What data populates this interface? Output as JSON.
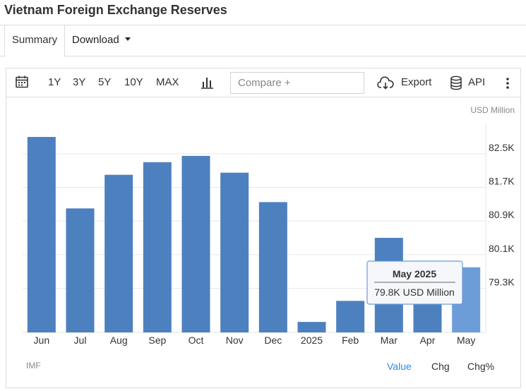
{
  "page": {
    "title": "Vietnam Foreign Exchange Reserves"
  },
  "tabs": {
    "summary": "Summary",
    "download": "Download"
  },
  "toolbar": {
    "ranges": [
      "1Y",
      "3Y",
      "5Y",
      "10Y",
      "MAX"
    ],
    "compare_placeholder": "Compare +",
    "export_label": "Export",
    "api_label": "API",
    "icons": {
      "calendar": "calendar-icon",
      "chart_type": "bar-chart-icon",
      "export": "cloud-download-icon",
      "api": "database-icon",
      "more": "more-vertical-icon"
    }
  },
  "chart_data": {
    "type": "bar",
    "unit_label": "USD Million",
    "categories": [
      "Jun",
      "Jul",
      "Aug",
      "Sep",
      "Oct",
      "Nov",
      "Dec",
      "2025",
      "Feb",
      "Mar",
      "Apr",
      "May"
    ],
    "values": [
      82.9,
      81.2,
      82.0,
      82.3,
      82.45,
      82.05,
      81.35,
      78.5,
      79.0,
      80.5,
      79.6,
      79.8
    ],
    "ylim": [
      78.25,
      83.22
    ],
    "yticks": [
      {
        "value": 79.3,
        "label": "79.3K"
      },
      {
        "value": 80.1,
        "label": "80.1K"
      },
      {
        "value": 80.9,
        "label": "80.9K"
      },
      {
        "value": 81.7,
        "label": "81.7K"
      },
      {
        "value": 82.5,
        "label": "82.5K"
      }
    ],
    "bar_color": "#4d80bf",
    "highlight_color": "#6d9dd9",
    "highlight_index": 11,
    "tooltip": {
      "title": "May 2025",
      "value": "79.8K USD Million"
    },
    "grid": true,
    "source": "IMF"
  },
  "footer": {
    "value_label": "Value",
    "chg_label": "Chg",
    "chgpct_label": "Chg%",
    "active_color": "#2e8ae6"
  }
}
